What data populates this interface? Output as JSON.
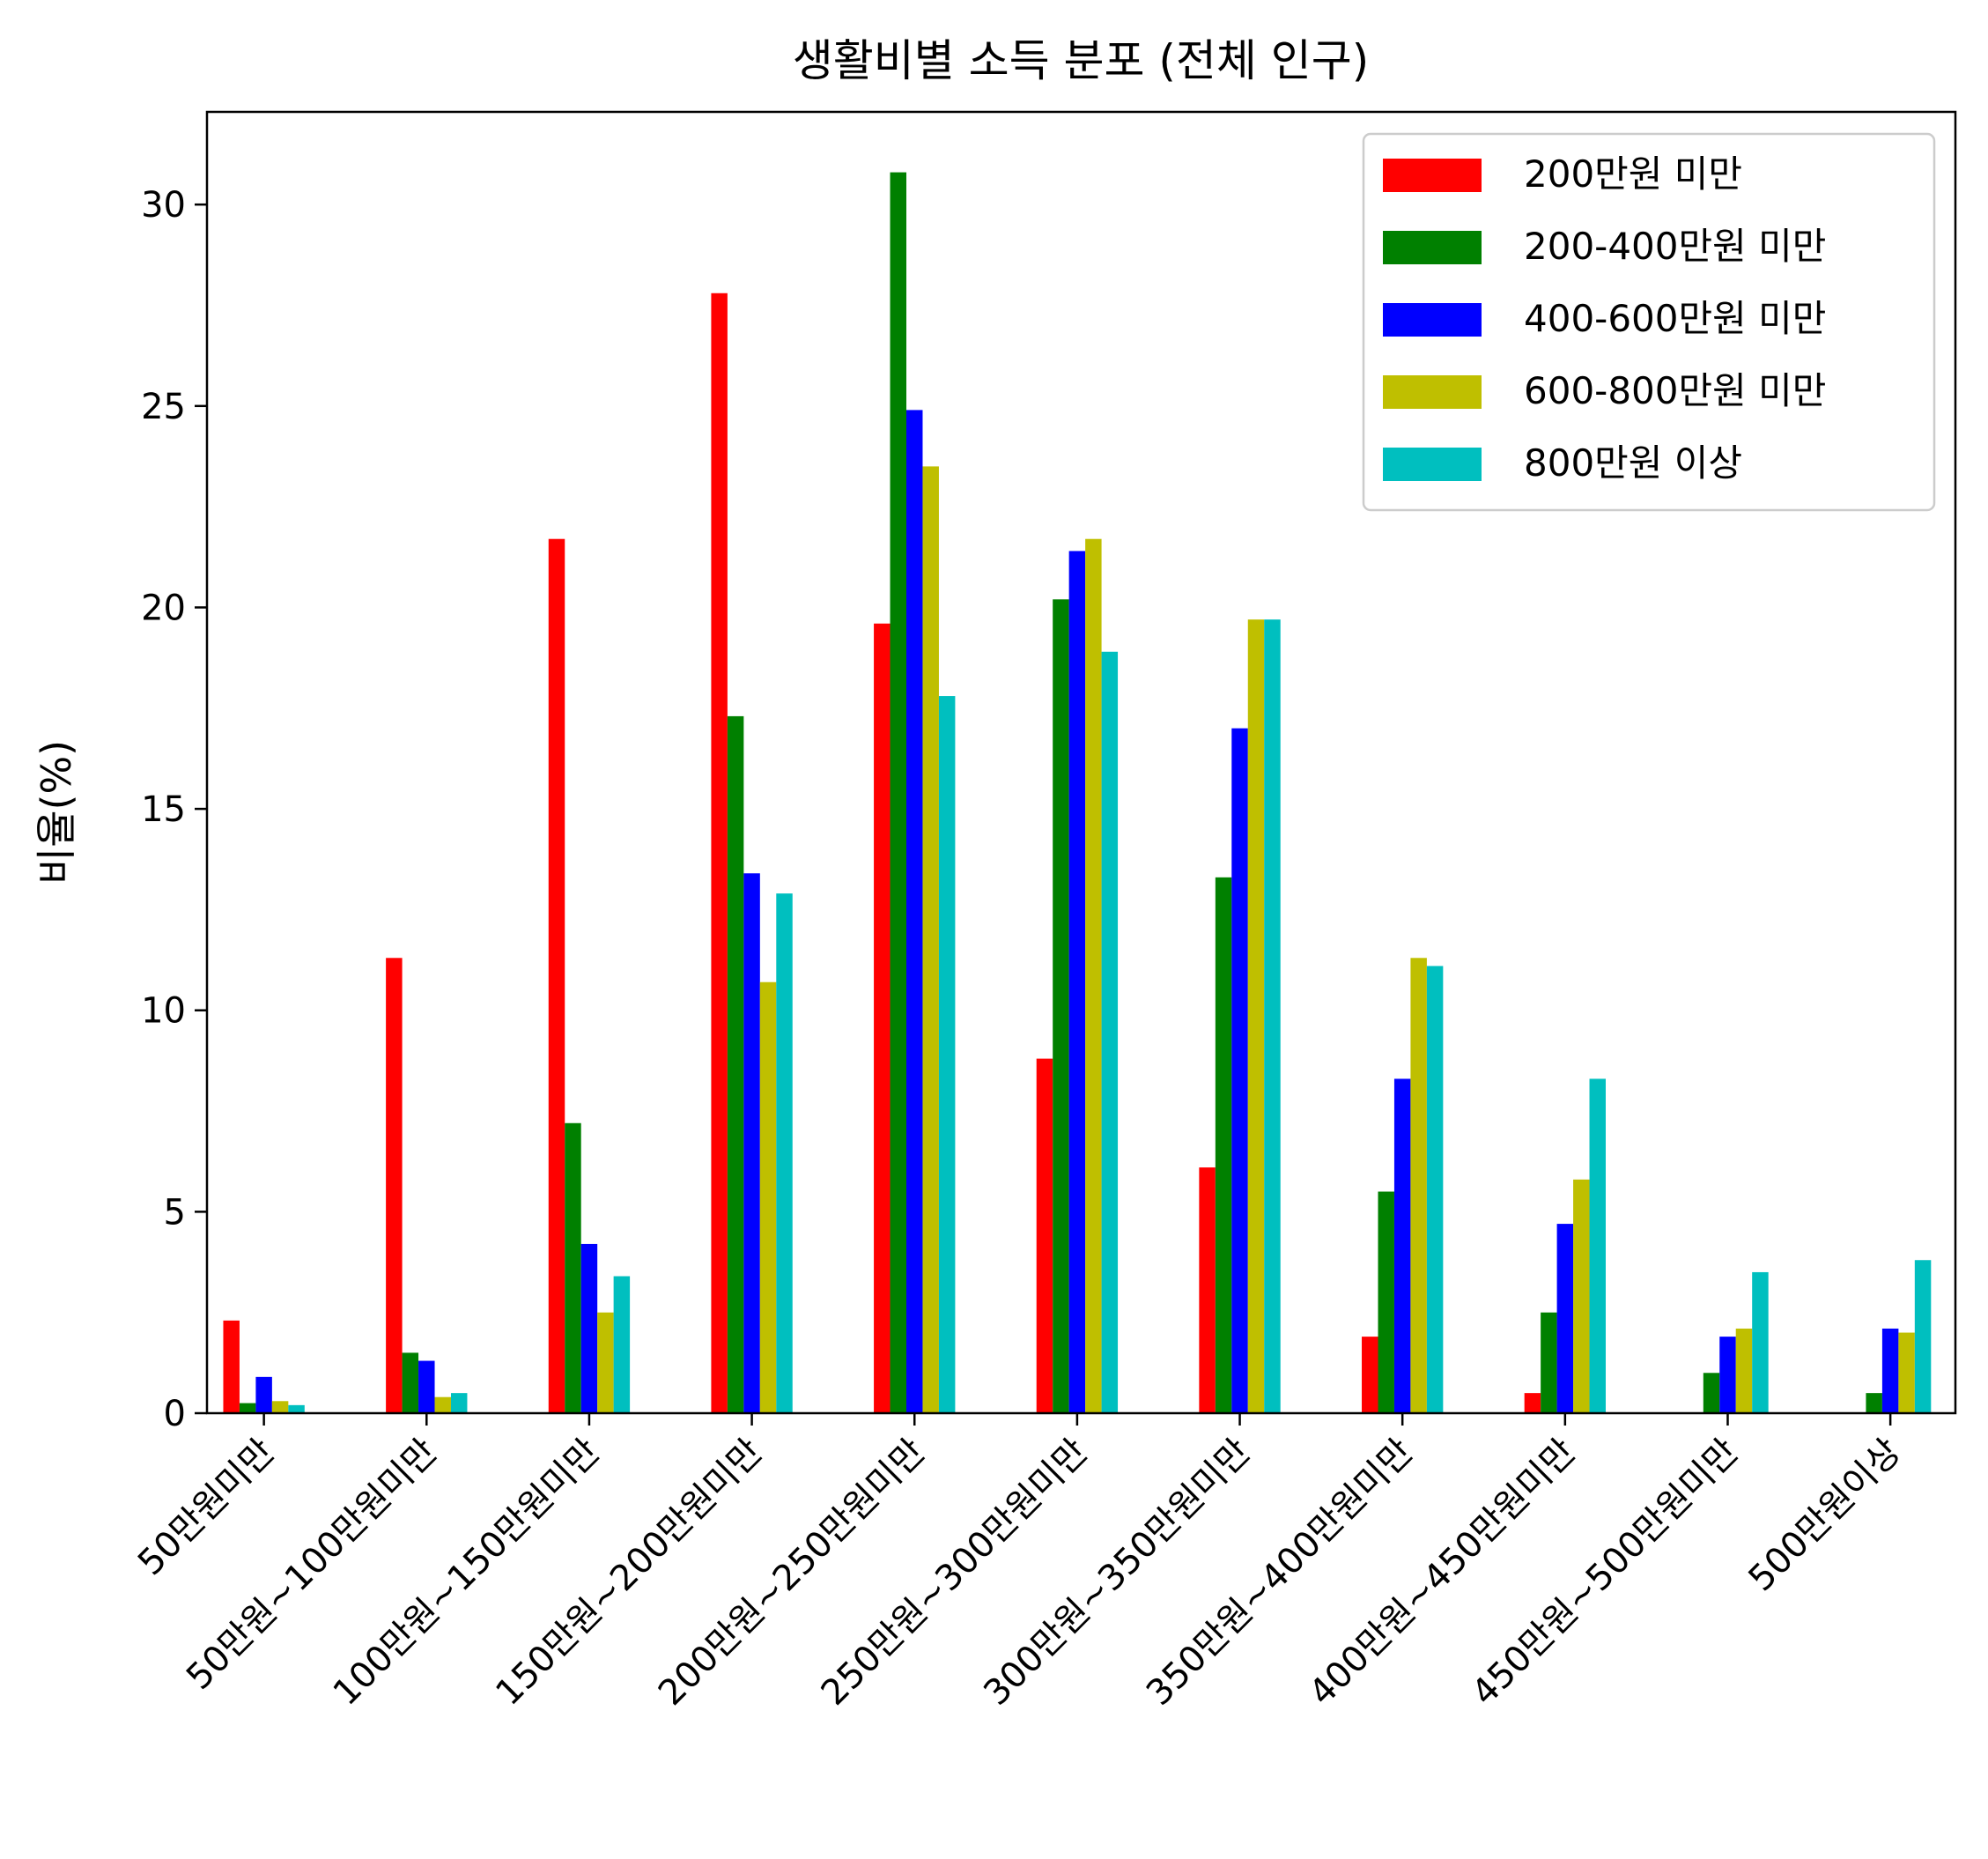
{
  "chart_data": {
    "type": "bar",
    "title": "생활비별 소득 분포 (전체 인구)",
    "xlabel": "",
    "ylabel": "비율(%)",
    "ylim": [
      0,
      32.3
    ],
    "yticks": [
      0,
      5,
      10,
      15,
      20,
      25,
      30
    ],
    "grid": false,
    "legend_position": "top-right",
    "categories": [
      "50만원미만",
      "50만원~100만원미만",
      "100만원~150만원미만",
      "150만원~200만원미만",
      "200만원~250만원미만",
      "250만원~300만원미만",
      "300만원~350만원미만",
      "350만원~400만원미만",
      "400만원~450만원미만",
      "450만원~500만원미만",
      "500만원이상"
    ],
    "series": [
      {
        "name": "200만원 미만",
        "color": "#ff0000",
        "values": [
          2.3,
          11.3,
          21.7,
          27.8,
          19.6,
          8.8,
          6.1,
          1.9,
          0.5,
          0.0,
          0.0
        ]
      },
      {
        "name": "200-400만원 미만",
        "color": "#008000",
        "values": [
          0.25,
          1.5,
          7.2,
          17.3,
          30.8,
          20.2,
          13.3,
          5.5,
          2.5,
          1.0,
          0.5
        ]
      },
      {
        "name": "400-600만원 미만",
        "color": "#0000ff",
        "values": [
          0.9,
          1.3,
          4.2,
          13.4,
          24.9,
          21.4,
          17.0,
          8.3,
          4.7,
          1.9,
          2.1
        ]
      },
      {
        "name": "600-800만원 미만",
        "color": "#bfbf00",
        "values": [
          0.3,
          0.4,
          2.5,
          10.7,
          23.5,
          21.7,
          19.7,
          11.3,
          5.8,
          2.1,
          2.0
        ]
      },
      {
        "name": "800만원 이상",
        "color": "#00bfbf",
        "values": [
          0.2,
          0.5,
          3.4,
          12.9,
          17.8,
          18.9,
          19.7,
          11.1,
          8.3,
          3.5,
          3.8
        ]
      }
    ]
  }
}
